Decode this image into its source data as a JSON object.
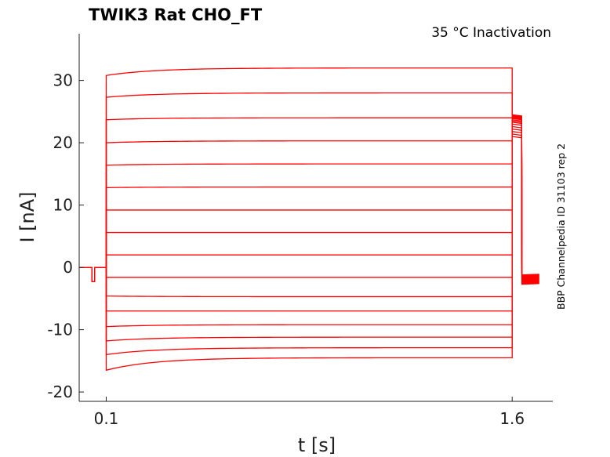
{
  "chart_data": {
    "type": "line",
    "title": "TWIK3  Rat  CHO_FT",
    "subtitle": "35 °C  Inactivation",
    "side_note": "BBP Channelpedia ID 31103 rep 2",
    "xlabel": "t [s]",
    "ylabel": "I [nA]",
    "xlim": [
      0.0,
      1.75
    ],
    "ylim": [
      -21.5,
      37.5
    ],
    "x_ticks": [
      0.1,
      1.6
    ],
    "x_tick_labels": [
      "0.1",
      "1.6"
    ],
    "y_ticks": [
      -20,
      -10,
      0,
      10,
      20,
      30
    ],
    "y_tick_labels": [
      "-20",
      "-10",
      "0",
      "10",
      "20",
      "30"
    ],
    "grid": false,
    "color": "#ff0000",
    "protocol": {
      "holding_current": 0.0,
      "dip": {
        "start": 0.047,
        "end": 0.057,
        "value": -2.3
      },
      "step_start": 0.1,
      "step_end": 1.6,
      "tail_end": 1.7,
      "x_start": 0.0
    },
    "series": [
      {
        "step_initial": -16.5,
        "step_final": -14.5,
        "tail_initial": 21.0,
        "tail_final": -2.7
      },
      {
        "step_initial": -14.0,
        "step_final": -12.9,
        "tail_initial": 21.4,
        "tail_final": -2.6
      },
      {
        "step_initial": -11.8,
        "step_final": -11.2,
        "tail_initial": 21.8,
        "tail_final": -2.5
      },
      {
        "step_initial": -9.5,
        "step_final": -9.2,
        "tail_initial": 22.2,
        "tail_final": -2.4
      },
      {
        "step_initial": -7.0,
        "step_final": -7.0,
        "tail_initial": 22.6,
        "tail_final": -2.3
      },
      {
        "step_initial": -4.6,
        "step_final": -4.7,
        "tail_initial": 23.0,
        "tail_final": -2.2
      },
      {
        "step_initial": -1.6,
        "step_final": -1.6,
        "tail_initial": 23.3,
        "tail_final": -2.1
      },
      {
        "step_initial": 2.0,
        "step_final": 2.0,
        "tail_initial": 23.5,
        "tail_final": -2.0
      },
      {
        "step_initial": 5.6,
        "step_final": 5.6,
        "tail_initial": 23.7,
        "tail_final": -1.9
      },
      {
        "step_initial": 9.2,
        "step_final": 9.2,
        "tail_initial": 23.9,
        "tail_final": -1.8
      },
      {
        "step_initial": 12.8,
        "step_final": 12.9,
        "tail_initial": 24.0,
        "tail_final": -1.7
      },
      {
        "step_initial": 16.4,
        "step_final": 16.6,
        "tail_initial": 24.1,
        "tail_final": -1.6
      },
      {
        "step_initial": 20.0,
        "step_final": 20.3,
        "tail_initial": 24.2,
        "tail_final": -1.5
      },
      {
        "step_initial": 23.7,
        "step_final": 24.0,
        "tail_initial": 24.3,
        "tail_final": -1.4
      },
      {
        "step_initial": 27.3,
        "step_final": 28.0,
        "tail_initial": 24.4,
        "tail_final": -1.3
      },
      {
        "step_initial": 30.8,
        "step_final": 32.0,
        "tail_initial": 24.5,
        "tail_final": -1.2
      }
    ]
  }
}
